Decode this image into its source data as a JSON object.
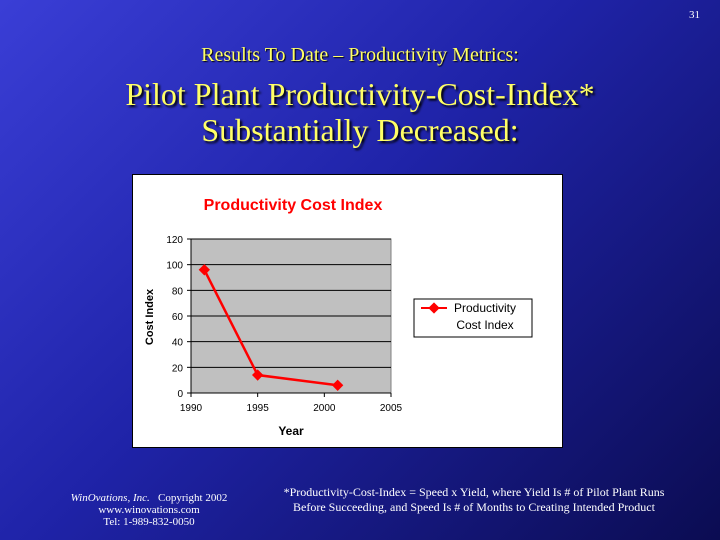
{
  "slide_number": "31",
  "subtitle": "Results To Date – Productivity Metrics:",
  "title_line1": "Pilot Plant Productivity-Cost-Index*",
  "title_line2": "Substantially Decreased:",
  "footer": {
    "company": "WinOvations, Inc.",
    "copyright": "Copyright 2002",
    "website": "www.winovations.com",
    "phone": "Tel:  1-989-832-0050",
    "note_line1": "*Productivity-Cost-Index = Speed x Yield, where Yield Is # of Pilot Plant Runs",
    "note_line2": "Before Succeeding, and Speed Is # of Months to Creating Intended Product"
  },
  "chart_data": {
    "type": "line",
    "title": "Productivity Cost Index",
    "xlabel": "Year",
    "ylabel": "Cost Index",
    "xlim": [
      1990,
      2005
    ],
    "ylim": [
      0,
      120
    ],
    "xticks": [
      "1990",
      "1995",
      "2000",
      "2005"
    ],
    "yticks": [
      "0",
      "20",
      "40",
      "60",
      "80",
      "100",
      "120"
    ],
    "grid": true,
    "legend_position": "right",
    "series": [
      {
        "name_line1": "Productivity",
        "name_line2": "Cost Index",
        "color": "#ff0000",
        "x": [
          1991,
          1995,
          2001
        ],
        "y": [
          96,
          14,
          6
        ]
      }
    ]
  }
}
